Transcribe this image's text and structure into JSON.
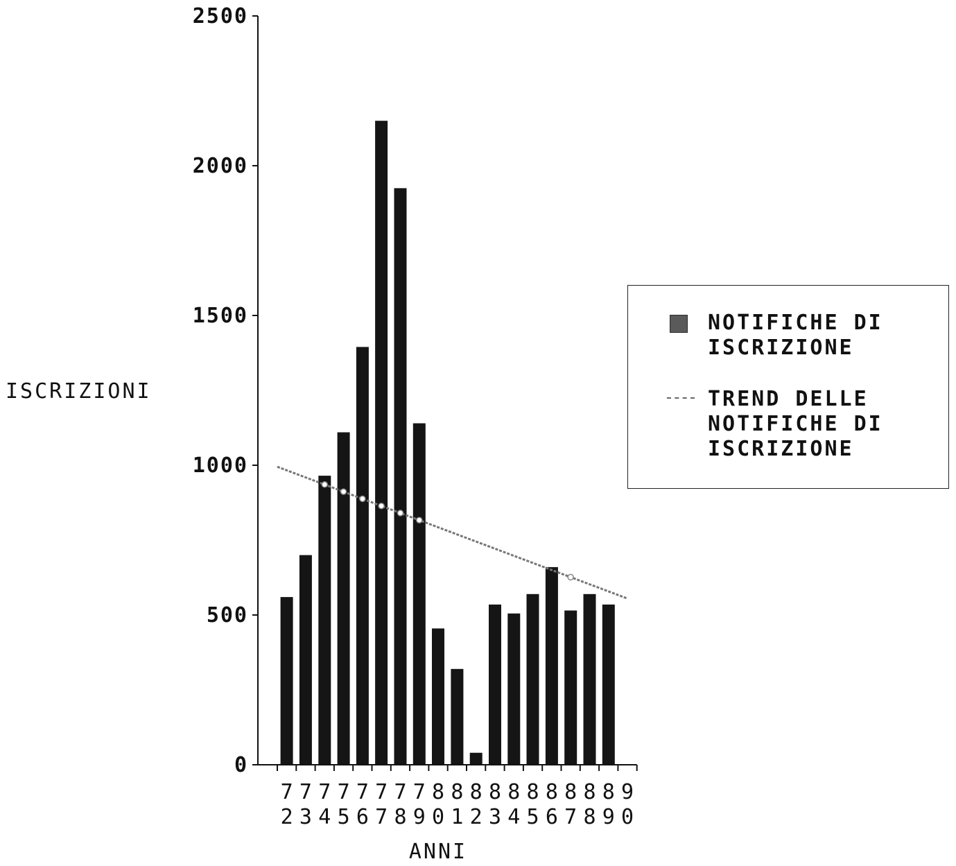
{
  "chart_data": {
    "type": "bar",
    "title": "",
    "xlabel": "ANNI",
    "ylabel": "ISCRIZIONI",
    "ylim": [
      0,
      2500
    ],
    "yticks": [
      "0",
      "500",
      "1000",
      "1500",
      "2000",
      "2500"
    ],
    "ytick_values": [
      0,
      500,
      1000,
      1500,
      2000,
      2500
    ],
    "categories": [
      "72",
      "73",
      "74",
      "75",
      "76",
      "77",
      "78",
      "79",
      "80",
      "81",
      "82",
      "83",
      "84",
      "85",
      "86",
      "87",
      "88",
      "89",
      "90"
    ],
    "series": [
      {
        "name": "NOTIFICHE DI ISCRIZIONE",
        "kind": "bar",
        "color": "#151515",
        "values": [
          560,
          700,
          965,
          1110,
          1395,
          2150,
          1925,
          1140,
          455,
          320,
          40,
          535,
          505,
          570,
          660,
          515,
          570,
          535,
          null
        ]
      },
      {
        "name": "TREND DELLE NOTIFICHE DI ISCRIZIONE",
        "kind": "line",
        "color": "#777777",
        "start": {
          "x": 71.5,
          "y": 995
        },
        "end": {
          "x": 90,
          "y": 555
        },
        "markers": [
          74,
          75,
          76,
          77,
          78,
          79,
          87
        ]
      }
    ],
    "grid": false,
    "legend_position": "right"
  },
  "legend": {
    "bar_label": "NOTIFICHE DI\nISCRIZIONE",
    "trend_label": "TREND DELLE\nNOTIFICHE DI\nISCRIZIONE"
  }
}
